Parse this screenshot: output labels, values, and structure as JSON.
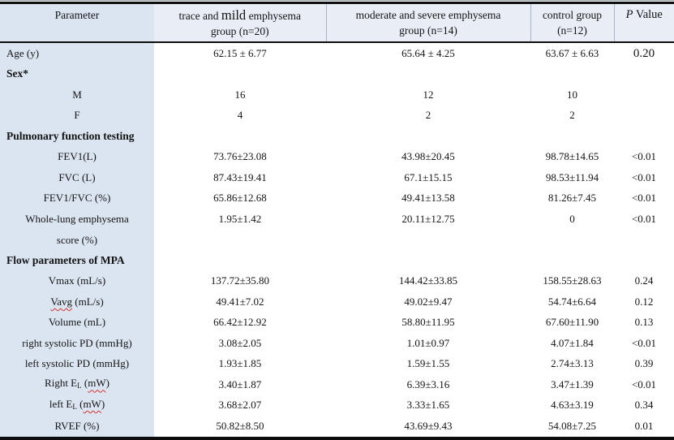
{
  "colors": {
    "first_column_bg": "#dbe5f1",
    "header_bg": "#e9edf6",
    "rule_color": "#0d0d0d",
    "spellcheck_wavy": "#d0342c"
  },
  "table": {
    "columns": [
      {
        "label": "Parameter"
      },
      {
        "line1_parts": [
          "trace and ",
          "mild",
          " emphysema"
        ],
        "line2": "group (n=20)"
      },
      {
        "line1": "moderate and severe emphysema",
        "line2": "group (n=14)"
      },
      {
        "line1": "control group",
        "line2": "(n=12)"
      },
      {
        "p_italic": "P",
        "p_rest": " Value"
      }
    ],
    "rows": [
      {
        "label": [
          {
            "t": "Age (y)"
          }
        ],
        "align": "left",
        "values": [
          "62.15 ± 6.77",
          "65.64 ± 4.25",
          "63.67 ± 6.63",
          "0.20"
        ],
        "p_large": true
      },
      {
        "label": [
          {
            "t": "Sex*"
          }
        ],
        "align": "left",
        "bold": true,
        "values": [
          "",
          "",
          "",
          ""
        ]
      },
      {
        "label": [
          {
            "t": "M"
          }
        ],
        "values": [
          "16",
          "12",
          "10",
          ""
        ]
      },
      {
        "label": [
          {
            "t": "F"
          }
        ],
        "values": [
          "4",
          "2",
          "2",
          ""
        ]
      },
      {
        "label": [
          {
            "t": "Pulmonary function testing"
          }
        ],
        "align": "left",
        "bold": true,
        "values": [
          "",
          "",
          "",
          ""
        ]
      },
      {
        "label": [
          {
            "t": "FEV1(L)"
          }
        ],
        "values": [
          "73.76±23.08",
          "43.98±20.45",
          "98.78±14.65",
          "<0.01"
        ]
      },
      {
        "label": [
          {
            "t": "FVC (L)"
          }
        ],
        "values": [
          "87.43±19.41",
          "67.1±15.15",
          "98.53±11.94",
          "<0.01"
        ]
      },
      {
        "label": [
          {
            "t": "FEV1/FVC (%)"
          }
        ],
        "values": [
          "65.86±12.68",
          "49.41±13.58",
          "81.26±7.45",
          "<0.01"
        ]
      },
      {
        "label": [
          {
            "t": "Whole-lung emphysema"
          },
          {
            "br": true
          },
          {
            "t": "score (%)"
          }
        ],
        "tall": true,
        "values": [
          "1.95±1.42",
          "20.11±12.75",
          "0",
          "<0.01"
        ]
      },
      {
        "label": [
          {
            "t": "Flow parameters of MPA"
          }
        ],
        "align": "left",
        "bold": true,
        "values": [
          "",
          "",
          "",
          ""
        ]
      },
      {
        "label": [
          {
            "t": "Vmax (mL/s)"
          }
        ],
        "values": [
          "137.72±35.80",
          "144.42±33.85",
          "158.55±28.63",
          "0.24"
        ]
      },
      {
        "label": [
          {
            "t": "Vavg",
            "wavy": true
          },
          {
            "t": " (mL/s)"
          }
        ],
        "values": [
          "49.41±7.02",
          "49.02±9.47",
          "54.74±6.64",
          "0.12"
        ]
      },
      {
        "label": [
          {
            "t": "Volume (mL)"
          }
        ],
        "values": [
          "66.42±12.92",
          "58.80±11.95",
          "67.60±11.90",
          "0.13"
        ]
      },
      {
        "label": [
          {
            "t": "right systolic PD (mmHg)"
          }
        ],
        "values": [
          "3.08±2.05",
          "1.01±0.97",
          "4.07±1.84",
          "<0.01"
        ]
      },
      {
        "label": [
          {
            "t": "left systolic PD (mmHg)"
          }
        ],
        "values": [
          "1.93±1.85",
          "1.59±1.55",
          "2.74±3.13",
          "0.39"
        ]
      },
      {
        "label": [
          {
            "t": "Right E"
          },
          {
            "t": "L",
            "sub": true
          },
          {
            "t": " ("
          },
          {
            "t": "mW",
            "wavy": true
          },
          {
            "t": ")"
          }
        ],
        "values": [
          "3.40±1.87",
          "6.39±3.16",
          "3.47±1.39",
          "<0.01"
        ]
      },
      {
        "label": [
          {
            "t": "left E"
          },
          {
            "t": "L",
            "sub": true
          },
          {
            "t": " ("
          },
          {
            "t": "mW",
            "wavy": true
          },
          {
            "t": ")"
          }
        ],
        "values": [
          "3.68±2.07",
          "3.33±1.65",
          "4.63±3.19",
          "0.34"
        ]
      },
      {
        "label": [
          {
            "t": "RVEF (%)"
          }
        ],
        "values": [
          "50.82±8.50",
          "43.69±9.43",
          "54.08±7.25",
          "0.01"
        ]
      }
    ]
  }
}
